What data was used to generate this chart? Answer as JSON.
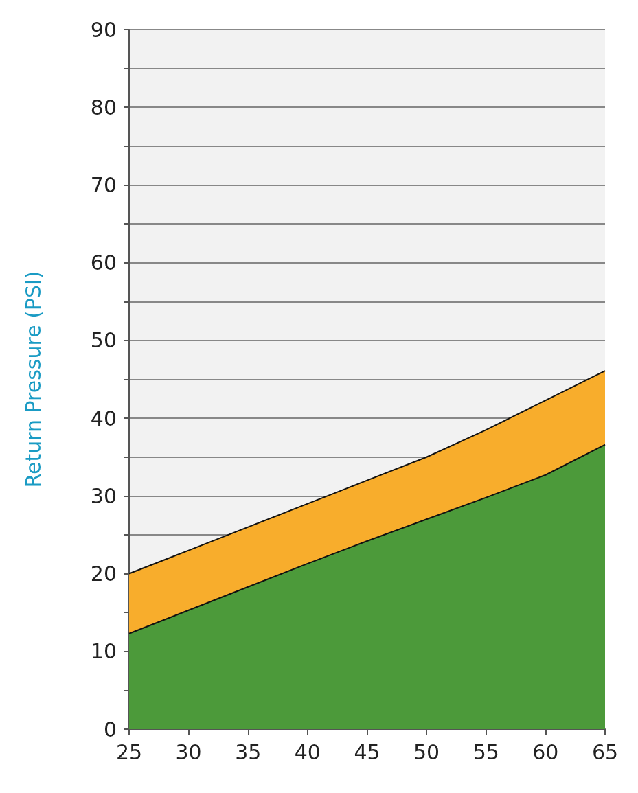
{
  "chart_data": {
    "type": "area",
    "ylabel": "Return Pressure (PSI)",
    "x": [
      25,
      30,
      35,
      40,
      45,
      50,
      55,
      60,
      65
    ],
    "stacked": true,
    "series": [
      {
        "color": "#4c9a3a",
        "values": [
          12.3,
          15.3,
          18.3,
          21.3,
          24.2,
          27,
          29.8,
          32.7,
          36.6
        ]
      },
      {
        "color": "#f8ad2c",
        "values": [
          7.7,
          7.7,
          7.7,
          7.7,
          7.8,
          8,
          8.7,
          9.6,
          9.5
        ]
      }
    ],
    "xlim": [
      25,
      65
    ],
    "xticks": [
      25,
      30,
      35,
      40,
      45,
      50,
      55,
      60,
      65
    ],
    "ylim": [
      0,
      90
    ],
    "yticks": [
      0,
      {
        "value": 5,
        "label": null
      },
      10,
      {
        "value": 15,
        "label": null
      },
      20,
      {
        "value": 25,
        "label": null
      },
      30,
      {
        "value": 35,
        "label": null
      },
      40,
      {
        "value": 45,
        "label": null
      },
      50,
      {
        "value": 55,
        "label": null
      },
      60,
      {
        "value": 65,
        "label": null
      },
      70,
      {
        "value": 75,
        "label": null
      },
      80,
      {
        "value": 85,
        "label": null
      },
      90
    ],
    "grid": "y"
  }
}
